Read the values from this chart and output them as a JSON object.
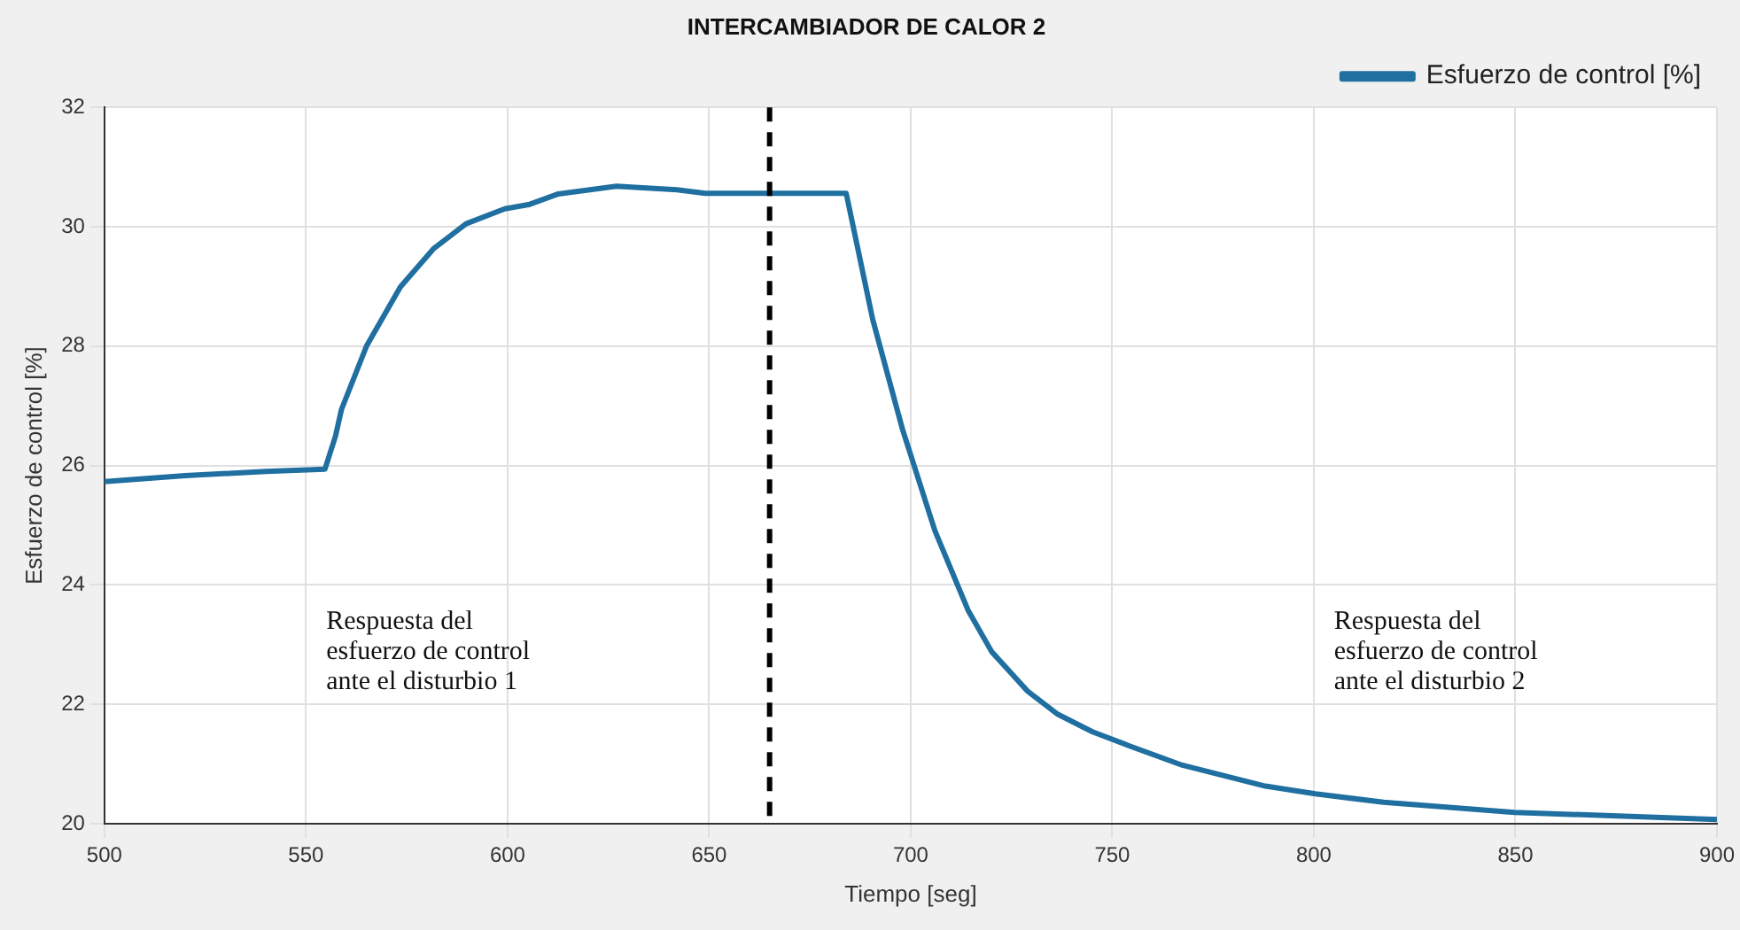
{
  "chart_data": {
    "type": "line",
    "title": "INTERCAMBIADOR DE CALOR 2",
    "xlabel": "Tiempo [seg]",
    "ylabel": "Esfuerzo de control [%]",
    "x": [
      500,
      520,
      540,
      554.7,
      557.3,
      558.8,
      565,
      573.4,
      581.6,
      589.7,
      599.3,
      605.2,
      612.6,
      627,
      642,
      649,
      684,
      690.6,
      698,
      706,
      714.2,
      720.1,
      729,
      736.3,
      745.1,
      754,
      767.4,
      788,
      800.4,
      817.3,
      849.8,
      900
    ],
    "series": [
      {
        "name": "Esfuerzo de control [%]",
        "color": "#1f6fa0",
        "values": [
          25.73,
          25.83,
          25.9,
          25.94,
          26.49,
          26.94,
          28.0,
          28.99,
          29.63,
          30.05,
          30.3,
          30.37,
          30.55,
          30.68,
          30.62,
          30.56,
          30.56,
          28.44,
          26.6,
          24.91,
          23.58,
          22.88,
          22.22,
          21.84,
          21.54,
          21.31,
          20.98,
          20.63,
          20.5,
          20.36,
          20.19,
          20.07
        ]
      }
    ],
    "xlim": [
      500,
      900
    ],
    "xticks": [
      500,
      550,
      600,
      650,
      700,
      750,
      800,
      850,
      900
    ],
    "ylim": [
      20,
      32
    ],
    "yticks": [
      20,
      22,
      24,
      26,
      28,
      30,
      32
    ],
    "grid": true,
    "legend": "top right",
    "marker": "none",
    "line_style": "solid",
    "ref_lines": [
      {
        "axis": "x",
        "value": 665,
        "color": "#000000",
        "line_style": "dashed"
      }
    ],
    "annotations": [
      "Respuesta del\nesfuerzo de control\nante el disturbio 1",
      "Respuesta del\nesfuerzo de control\nante el disturbio 2"
    ]
  }
}
